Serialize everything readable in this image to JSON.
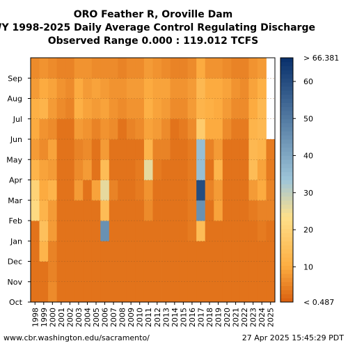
{
  "chart_data": {
    "type": "heatmap",
    "title": [
      "ORO Feather R, Oroville Dam",
      "WY 1998-2025 Daily Average Control Regulating Discharge",
      "Observed Range 0.000 : 119.012 TCFS"
    ],
    "xlabel": "",
    "ylabel": "",
    "x_categories": [
      "1998",
      "1999",
      "2000",
      "2001",
      "2002",
      "2003",
      "2004",
      "2005",
      "2006",
      "2007",
      "2008",
      "2009",
      "2010",
      "2011",
      "2012",
      "2013",
      "2014",
      "2015",
      "2016",
      "2017",
      "2018",
      "2019",
      "2020",
      "2021",
      "2022",
      "2023",
      "2024",
      "2025"
    ],
    "y_categories": [
      "Oct",
      "Nov",
      "Dec",
      "Jan",
      "Feb",
      "Mar",
      "Apr",
      "May",
      "Jun",
      "Jul",
      "Aug",
      "Sep"
    ],
    "colorbar": {
      "min_label": "< 0.487",
      "max_label": "> 66.381",
      "ticks": [
        10,
        20,
        30,
        40,
        50,
        60
      ],
      "min": 0.487,
      "max": 66.381
    },
    "approx_monthly_values_tcfs": [
      [
        3,
        3,
        6,
        3,
        3,
        3,
        3,
        3,
        3,
        3,
        3,
        3,
        3,
        3,
        3,
        3,
        3,
        3,
        3,
        3,
        3,
        3,
        3,
        3,
        3,
        3,
        3,
        3
      ],
      [
        3,
        3,
        5,
        3,
        3,
        3,
        3,
        3,
        3,
        3,
        3,
        3,
        3,
        3,
        3,
        3,
        3,
        3,
        3,
        3,
        3,
        3,
        3,
        3,
        3,
        3,
        3,
        3
      ],
      [
        3,
        12,
        5,
        3,
        3,
        3,
        3,
        3,
        3,
        3,
        3,
        3,
        3,
        3,
        3,
        3,
        3,
        3,
        3,
        3,
        3,
        3,
        3,
        3,
        3,
        3,
        3,
        3
      ],
      [
        3,
        15,
        8,
        3,
        3,
        3,
        3,
        3,
        45,
        3,
        3,
        3,
        3,
        3,
        3,
        3,
        3,
        3,
        4,
        14,
        3,
        3,
        3,
        3,
        3,
        3,
        4,
        3
      ],
      [
        22,
        12,
        8,
        3,
        3,
        3,
        3,
        3,
        14,
        3,
        3,
        3,
        3,
        6,
        3,
        3,
        3,
        3,
        4,
        45,
        3,
        9,
        3,
        3,
        3,
        4,
        5,
        5
      ],
      [
        20,
        10,
        12,
        3,
        3,
        8,
        3,
        9,
        26,
        5,
        3,
        3,
        4,
        7,
        3,
        3,
        3,
        3,
        4,
        60,
        5,
        8,
        3,
        3,
        3,
        8,
        10,
        5
      ],
      [
        12,
        9,
        8,
        3,
        3,
        6,
        8,
        3,
        14,
        3,
        3,
        3,
        4,
        26,
        4,
        3,
        3,
        3,
        4,
        35,
        3,
        12,
        3,
        3,
        3,
        14,
        9,
        4
      ],
      [
        8,
        6,
        9,
        3,
        3,
        5,
        6,
        3,
        8,
        3,
        3,
        3,
        3,
        12,
        5,
        5,
        3,
        3,
        4,
        35,
        5,
        8,
        3,
        3,
        3,
        13,
        12,
        4
      ],
      [
        10,
        7,
        6,
        3,
        3,
        8,
        7,
        5,
        7,
        6,
        3,
        5,
        6,
        9,
        8,
        6,
        3,
        4,
        6,
        18,
        10,
        10,
        6,
        4,
        4,
        12,
        13,
        null
      ],
      [
        11,
        12,
        8,
        6,
        5,
        11,
        9,
        8,
        9,
        7,
        6,
        7,
        7,
        11,
        9,
        8,
        6,
        6,
        8,
        12,
        11,
        10,
        8,
        6,
        6,
        10,
        13,
        null
      ],
      [
        8,
        10,
        9,
        7,
        6,
        10,
        8,
        9,
        8,
        7,
        7,
        8,
        8,
        10,
        9,
        9,
        7,
        7,
        8,
        13,
        10,
        10,
        9,
        7,
        6,
        9,
        11,
        null
      ],
      [
        6,
        7,
        6,
        5,
        5,
        7,
        7,
        6,
        6,
        6,
        5,
        6,
        6,
        8,
        7,
        6,
        5,
        5,
        6,
        10,
        7,
        7,
        6,
        5,
        5,
        7,
        8,
        null
      ]
    ]
  },
  "footer": {
    "source": "www.cbr.washington.edu/sacramento/",
    "timestamp": "27 Apr 2025 15:45:29 PDT"
  },
  "colors": {
    "low": "#d95f0e",
    "mid_low": "#fdae42",
    "mid": "#fee08b",
    "mid_high": "#9ec5d9",
    "high": "#08306b"
  }
}
